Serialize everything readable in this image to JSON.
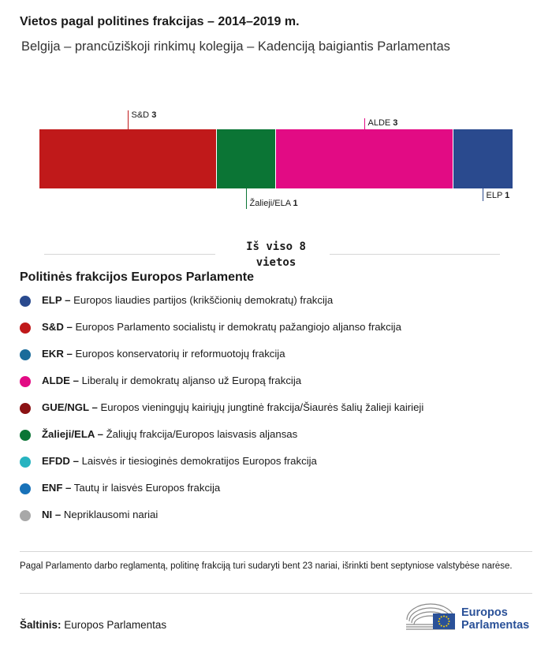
{
  "header": {
    "title": "Vietos pagal politines frakcijas – 2014–2019 m.",
    "subtitle": "Belgija – prancūziškoji rinkimų kolegija – Kadenciją baigiantis Parlamentas"
  },
  "chart_data": {
    "type": "bar",
    "orientation": "stacked-horizontal",
    "categories": [
      "S&D",
      "Žalieji/ELA",
      "ALDE",
      "ELP"
    ],
    "values": [
      3,
      1,
      3,
      1
    ],
    "colors": [
      "#c0191a",
      "#0b7535",
      "#e20b84",
      "#2a4a8e"
    ],
    "total_label": "Iš viso 8 vietos"
  },
  "legend": {
    "title": "Politinės frakcijos Europos Parlamente",
    "items": [
      {
        "abbr": "ELP –",
        "desc": "Europos liaudies partijos (krikščionių demokratų) frakcija",
        "color": "#2a4a8e"
      },
      {
        "abbr": "S&D –",
        "desc": "Europos Parlamento socialistų ir demokratų pažangiojo aljanso frakcija",
        "color": "#c0191a"
      },
      {
        "abbr": "EKR –",
        "desc": "Europos konservatorių ir reformuotojų frakcija",
        "color": "#1a6b9a"
      },
      {
        "abbr": "ALDE –",
        "desc": "Liberalų ir demokratų aljanso už Europą frakcija",
        "color": "#e20b84"
      },
      {
        "abbr": "GUE/NGL –",
        "desc": "Europos vieningųjų kairiųjų jungtinė frakcija/Šiaurės šalių žalieji kairieji",
        "color": "#8b1214"
      },
      {
        "abbr": "Žalieji/ELA –",
        "desc": "Žaliųjų frakcija/Europos laisvasis aljansas",
        "color": "#0b7535"
      },
      {
        "abbr": "EFDD –",
        "desc": "Laisvės ir tiesioginės demokratijos Europos frakcija",
        "color": "#27b3c0"
      },
      {
        "abbr": "ENF –",
        "desc": "Tautų ir laisvės Europos frakcija",
        "color": "#1872b9"
      },
      {
        "abbr": "NI –",
        "desc": "Nepriklausomi nariai",
        "color": "#a8a8a8"
      }
    ]
  },
  "footer": {
    "note": "Pagal Parlamento darbo reglamentą, politinę frakciją turi sudaryti bent 23 nariai, išrinkti bent septyniose valstybėse narėse.",
    "source_label": "Šaltinis:",
    "source_value": "Europos Parlamentas",
    "logo_line1": "Europos",
    "logo_line2": "Parlamentas"
  }
}
